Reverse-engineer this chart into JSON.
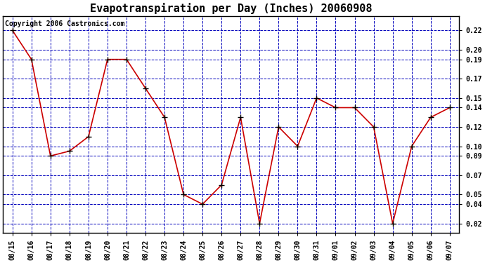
{
  "title": "Evapotranspiration per Day (Inches) 20060908",
  "copyright_text": "Copyright 2006 Castronics.com",
  "x_labels": [
    "08/15",
    "08/16",
    "08/17",
    "08/18",
    "08/19",
    "08/20",
    "08/21",
    "08/22",
    "08/23",
    "08/24",
    "08/25",
    "08/26",
    "08/27",
    "08/28",
    "08/29",
    "08/30",
    "08/31",
    "09/01",
    "09/02",
    "09/03",
    "09/04",
    "09/05",
    "09/06",
    "09/07"
  ],
  "y_values": [
    0.22,
    0.19,
    0.09,
    0.095,
    0.11,
    0.19,
    0.19,
    0.16,
    0.13,
    0.05,
    0.04,
    0.06,
    0.13,
    0.02,
    0.12,
    0.1,
    0.15,
    0.14,
    0.14,
    0.12,
    0.02,
    0.1,
    0.13,
    0.14
  ],
  "line_color": "#cc0000",
  "marker": "+",
  "marker_color": "#000000",
  "marker_size": 6,
  "background_color": "#ffffff",
  "plot_bg_color": "#ffffff",
  "grid_color": "#0000bb",
  "grid_style": "--",
  "title_fontsize": 11,
  "copyright_fontsize": 7,
  "tick_fontsize": 7,
  "ylim": [
    0.01,
    0.235
  ],
  "yticks": [
    0.02,
    0.04,
    0.05,
    0.07,
    0.09,
    0.1,
    0.12,
    0.14,
    0.15,
    0.17,
    0.19,
    0.2,
    0.22
  ]
}
